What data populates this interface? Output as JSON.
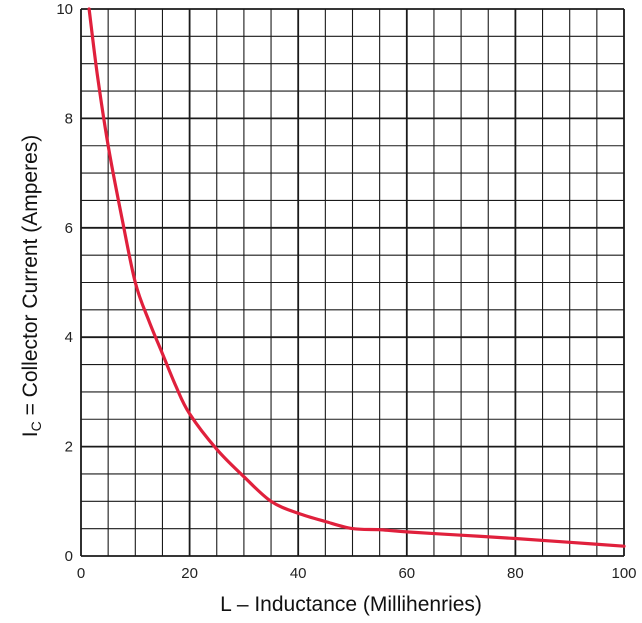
{
  "chart_data": {
    "type": "line",
    "xlabel": "L – Inductance (Millihenries)",
    "ylabel_prefix": "I",
    "ylabel_subscript": "C",
    "ylabel_rest": " = Collector Current (Amperes)",
    "xlim": [
      0,
      100
    ],
    "ylim": [
      0,
      10
    ],
    "x_ticks": [
      "0",
      "20",
      "40",
      "60",
      "80",
      "100"
    ],
    "y_ticks": [
      "0",
      "2",
      "4",
      "6",
      "8",
      "10"
    ],
    "grid": true,
    "series": [
      {
        "color": "#e0203c",
        "x": [
          1.5,
          3,
          5,
          7.5,
          10,
          12.5,
          15,
          17.5,
          20,
          25,
          30,
          35,
          40,
          45,
          50,
          55,
          60,
          70,
          80,
          90,
          100
        ],
        "y": [
          10,
          8.8,
          7.5,
          6.2,
          5.0,
          4.3,
          3.7,
          3.1,
          2.6,
          1.95,
          1.45,
          1.0,
          0.78,
          0.63,
          0.5,
          0.48,
          0.44,
          0.38,
          0.32,
          0.25,
          0.18
        ]
      }
    ]
  }
}
